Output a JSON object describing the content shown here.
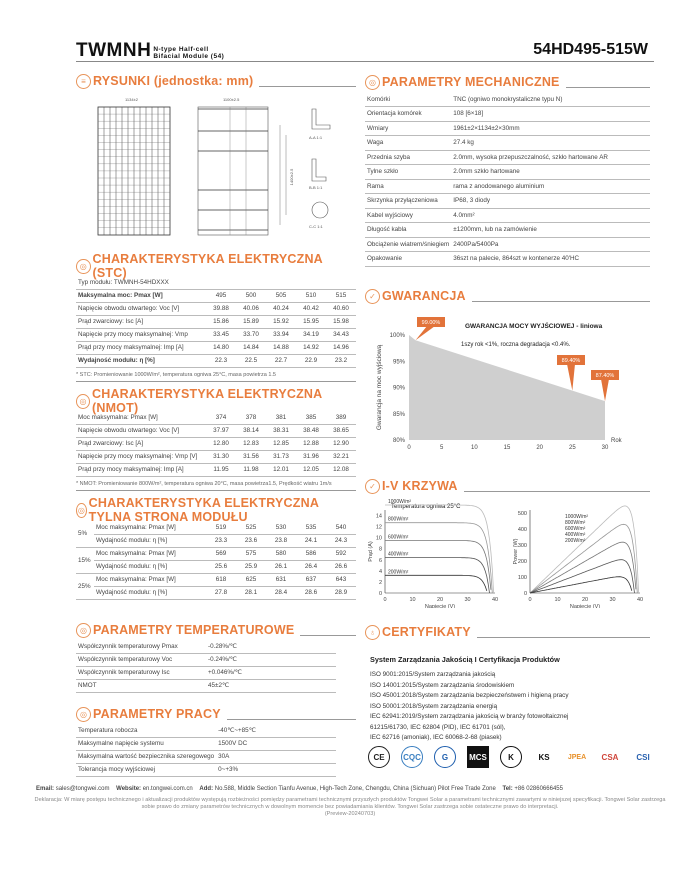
{
  "header": {
    "brand": "TWMNH",
    "subtitle_line1": "N-type Half-cell",
    "subtitle_line2": "Bifacial Module (54)",
    "model": "54HD495-515W"
  },
  "colors": {
    "accent": "#e87d3e",
    "warranty_fill": "#cfcfcf",
    "callout": "#e2733a"
  },
  "drawings": {
    "heading": "RYSUNKI (jednostka: mm)",
    "width_dim": "1134±2",
    "length_dim": "1961±2",
    "side_dims": [
      "1400±2.5",
      "1100±2.5"
    ],
    "sections": [
      "A-A 1:1",
      "B-B 1:1",
      "C-C 1:1"
    ]
  },
  "stc": {
    "heading": "CHARAKTERYSTYKA ELEKTRYCZNA (STC)",
    "type_label": "Typ modułu: TWMNH-54HDXXX",
    "rows": [
      {
        "label": "Maksymalna moc: Pmax [W]",
        "values": [
          "495",
          "500",
          "505",
          "510",
          "515"
        ],
        "bold": true
      },
      {
        "label": "Napięcie obwodu otwartego: Voc [V]",
        "values": [
          "39.88",
          "40.06",
          "40.24",
          "40.42",
          "40.60"
        ]
      },
      {
        "label": "Prąd zwarciowy: Isc [A]",
        "values": [
          "15.86",
          "15.89",
          "15.92",
          "15.95",
          "15.98"
        ]
      },
      {
        "label": "Napięcie przy mocy maksymalnej: Vmp",
        "values": [
          "33.45",
          "33.70",
          "33.94",
          "34.19",
          "34.43"
        ]
      },
      {
        "label": "Prąd przy mocy maksymalnej: Imp [A]",
        "values": [
          "14.80",
          "14.84",
          "14.88",
          "14.92",
          "14.96"
        ]
      },
      {
        "label": "Wydajność modułu: η [%]",
        "values": [
          "22.3",
          "22.5",
          "22.7",
          "22.9",
          "23.2"
        ],
        "bold": true
      }
    ],
    "note": "* STC: Promieniowanie 1000W/m², temperatura ogniwa 25°C, masa powietrza 1.5"
  },
  "nmot": {
    "heading": "CHARAKTERYSTYKA ELEKTRYCZNA (NMOT)",
    "rows": [
      {
        "label": "Moc maksymalna: Pmax [W]",
        "values": [
          "374",
          "378",
          "381",
          "385",
          "389"
        ]
      },
      {
        "label": "Napięcie obwodu otwartego: Voc [V]",
        "values": [
          "37.97",
          "38.14",
          "38.31",
          "38.48",
          "38.65"
        ]
      },
      {
        "label": "Prąd zwarciowy: Isc [A]",
        "values": [
          "12.80",
          "12.83",
          "12.85",
          "12.88",
          "12.90"
        ]
      },
      {
        "label": "Napięcie przy mocy maksymalnej: Vmp [V]",
        "values": [
          "31.30",
          "31.56",
          "31.73",
          "31.96",
          "32.21"
        ]
      },
      {
        "label": "Prąd przy mocy maksymalnej: Imp [A]",
        "values": [
          "11.95",
          "11.98",
          "12.01",
          "12.05",
          "12.08"
        ]
      }
    ],
    "note": "* NMOT: Promieniowanie 800W/m², temperatura ogniwa 20°C, masa powietrza1.5, Prędkość wiatru 1m/s"
  },
  "rear": {
    "heading": "CHARAKTERYSTYKA ELEKTRYCZNA TYLNA STRONA MODUŁU",
    "groups": [
      {
        "gain": "5%",
        "rows": [
          {
            "label": "Moc maksymalna: Pmax [W]",
            "values": [
              "519",
              "525",
              "530",
              "535",
              "540"
            ]
          },
          {
            "label": "Wydajność modułu: η [%]",
            "values": [
              "23.3",
              "23.6",
              "23.8",
              "24.1",
              "24.3"
            ]
          }
        ]
      },
      {
        "gain": "15%",
        "rows": [
          {
            "label": "Moc maksymalna: Pmax [W]",
            "values": [
              "569",
              "575",
              "580",
              "586",
              "592"
            ]
          },
          {
            "label": "Wydajność modułu: η [%]",
            "values": [
              "25.6",
              "25.9",
              "26.1",
              "26.4",
              "26.6"
            ]
          }
        ]
      },
      {
        "gain": "25%",
        "rows": [
          {
            "label": "Moc maksymalna: Pmax [W]",
            "values": [
              "618",
              "625",
              "631",
              "637",
              "643"
            ]
          },
          {
            "label": "Wydajność modułu: η [%]",
            "values": [
              "27.8",
              "28.1",
              "28.4",
              "28.6",
              "28.9"
            ]
          }
        ]
      }
    ]
  },
  "temp": {
    "heading": "PARAMETRY TEMPERATUROWE",
    "rows": [
      {
        "label": "Współczynnik temperaturowy  Pmax",
        "value": "-0.28%/℃"
      },
      {
        "label": "Współczynnik temperaturowy  Voc",
        "value": "-0.24%/℃"
      },
      {
        "label": "Współczynnik temperaturowy Isc",
        "value": "+0.046%/℃"
      },
      {
        "label": "NMOT",
        "value": "45±2℃"
      }
    ]
  },
  "work": {
    "heading": "PARAMETRY PRACY",
    "rows": [
      {
        "label": "Temperatura robocza",
        "value": "-40℃~+85℃"
      },
      {
        "label": "Maksymalne napięcie systemu",
        "value": "1500V DC"
      },
      {
        "label": "Maksymalna wartość bezpiecznika szeregowego",
        "value": "30A"
      },
      {
        "label": "Tolerancja mocy wyjściowej",
        "value": "0~+3%"
      }
    ]
  },
  "mech": {
    "heading": "PARAMETRY MECHANICZNE",
    "rows": [
      {
        "label": "Komórki",
        "value": "TNC (ogniwo monokrystaliczne typu N)"
      },
      {
        "label": "Orientacja komórek",
        "value": "108 [6×18]"
      },
      {
        "label": "Wmiary",
        "value": "1961±2×1134±2×30mm"
      },
      {
        "label": "Waga",
        "value": "27.4 kg"
      },
      {
        "label": "Przednia szyba",
        "value": "2.0mm, wysoka przepuszczalność, szkło hartowane AR"
      },
      {
        "label": "Tylne szkło",
        "value": "2.0mm szkło hartowane"
      },
      {
        "label": "Rama",
        "value": "rama z anodowanego aluminium"
      },
      {
        "label": "Skrzynka przyłączeniowa",
        "value": "IP68, 3 diody"
      },
      {
        "label": "Kabel wyjściowy",
        "value": "4.0mm²"
      },
      {
        "label": "Długość kabla",
        "value": "±1200mm, lub na zamówienie"
      },
      {
        "label": "Obciążenie wiatrem/śniegiem",
        "value": "2400Pa/5400Pa"
      },
      {
        "label": "Opakowanie",
        "value": "36szt na palecie, 864szt w kontenerze 40'HC"
      }
    ]
  },
  "warranty": {
    "heading": "GWARANCJA"
  },
  "iv": {
    "heading": "I-V KRZYWA"
  },
  "chart_data": [
    {
      "type": "area",
      "title": "GWARANCJA MOCY WYJŚCIOWEJ - liniowa",
      "ylabel": "Gwarancja na moc wyjściową",
      "xlabel": "Rok",
      "x": [
        0,
        1,
        25,
        30
      ],
      "y": [
        100,
        99.0,
        89.4,
        87.4
      ],
      "xlim": [
        0,
        30
      ],
      "ylim": [
        80,
        100
      ],
      "xticks": [
        "0",
        "5",
        "10",
        "15",
        "20",
        "25",
        "30"
      ],
      "yticks": [
        "80%",
        "85%",
        "90%",
        "95%",
        "100%"
      ],
      "annotation": "1szy rok <1%, roczna degradacja <0.4%.",
      "callouts": [
        {
          "x": 1,
          "label": "99.00%"
        },
        {
          "x": 25,
          "label": "89.40%"
        },
        {
          "x": 30,
          "label": "87.40%"
        }
      ]
    },
    {
      "type": "line",
      "title": "Temperatura ogniwa 25°C",
      "xlabel": "Napięcie (V)",
      "ylabel": "Prąd (A)",
      "xlim": [
        0,
        40
      ],
      "ylim": [
        0,
        15
      ],
      "xticks": [
        "0",
        "10",
        "20",
        "30",
        "40"
      ],
      "yticks": [
        "0",
        "2",
        "4",
        "6",
        "8",
        "10",
        "12",
        "14"
      ],
      "series": [
        {
          "name": "1000W/m²",
          "isc": 15.9,
          "voc": 39.5
        },
        {
          "name": "800W/m²",
          "isc": 12.7,
          "voc": 39.0
        },
        {
          "name": "600W/m²",
          "isc": 9.5,
          "voc": 38.6
        },
        {
          "name": "400W/m²",
          "isc": 6.4,
          "voc": 38.0
        },
        {
          "name": "200W/m²",
          "isc": 3.2,
          "voc": 37.2
        }
      ]
    },
    {
      "type": "line",
      "xlabel": "Napięcie (V)",
      "ylabel": "Power (W)",
      "xlim": [
        0,
        40
      ],
      "ylim": [
        0,
        520
      ],
      "xticks": [
        "0",
        "10",
        "20",
        "30",
        "40"
      ],
      "yticks": [
        "0",
        "100",
        "200",
        "300",
        "400",
        "500"
      ],
      "series": [
        {
          "name": "1000W/m²",
          "pmax": 500
        },
        {
          "name": "800W/m²",
          "pmax": 400
        },
        {
          "name": "600W/m²",
          "pmax": 300
        },
        {
          "name": "400W/m²",
          "pmax": 200
        },
        {
          "name": "200W/m²",
          "pmax": 100
        }
      ]
    }
  ],
  "certs": {
    "heading": "CERTYFIKATY",
    "title": "System Zarządzania Jakością I Certyfikacja Produktów",
    "lines": [
      "ISO 9001:2015/System zarządzania jakością",
      "ISO 14001:2015/System zarządzania środowiskiem",
      "ISO 45001:2018/System zarządzania bezpieczeństwem i higieną pracy",
      "ISO 50001:2018/System zarządzania energią",
      "IEC 62941:2019/System zarządzania jakością w branży fotowoltaicznej",
      "61215/61730, IEC 62804 (PID), IEC 61701 (sól),",
      "IEC 62716 (amoniak), IEC 60068-2-68 (piasek)"
    ],
    "logos": [
      "CE",
      "CQC",
      "G",
      "MCS",
      "K",
      "KS",
      "JPEA",
      "CSA",
      "CSI"
    ]
  },
  "footer": {
    "email_label": "Email:",
    "email": "sales@tongwei.com",
    "web_label": "Website:",
    "web": "en.tongwei.com.cn",
    "addr_label": "Add:",
    "addr": "No.588, Middle Section Tianfu Avenue, High-Tech Zone, Chengdu, China (Sichuan) Pilot Free Trade Zone",
    "tel_label": "Tel:",
    "tel": "+86 02860666455",
    "disclaimer": "Deklaracja: W miarę postępu technicznego i aktualizacji produktów występują rozbieżności pomiędzy parametrami technicznymi przyszłych produktów Tongwei Solar a parametrami technicznymi zawartymi w niniejszej specyfikacji. Tongwei Solar zastrzega sobie prawo do zmiany parametrów technicznych w dowolnym momencie bez powiadamiania klientów. Tongwei Solar zastrzega sobie ostateczne prawo do interpretacji.",
    "version": "(Preview-20240703)"
  }
}
